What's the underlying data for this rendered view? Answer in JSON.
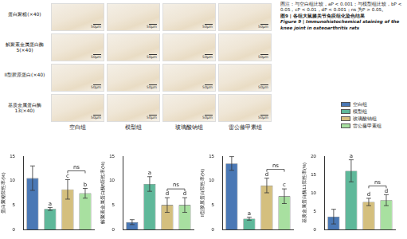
{
  "caption": {
    "note": "图注：与空白组比较，aP < 0.001；与模型组比较，bP < 0.05，cP < 0.01，dP < 0.001；ns 为P > 0.05。",
    "title_cn": "图9 | 各组大鼠膝关节免疫组化染色结果",
    "title_en": "Figure 9 | Immunohistochemical staining of the knee joint in osteoarthritis rats"
  },
  "image_grid": {
    "rows": [
      "蛋白聚糖(×40)",
      "解聚素金属蛋白酶5(×40)",
      "II型胶原蛋白(×40)",
      "基质金属蛋白酶13(×40)"
    ],
    "columns": [
      "空白组",
      "模型组",
      "玻璃酸钠组",
      "雷公藤甲素组"
    ],
    "scale_bar": "50μm"
  },
  "chart_data": [
    {
      "type": "bar",
      "y_label": "蛋白聚糖阳性率(%)",
      "categories": [
        "空白组",
        "模型组",
        "玻璃酸钠组",
        "雷公藤甲素组"
      ],
      "values": [
        10.5,
        4.2,
        8.2,
        7.4
      ],
      "errors": [
        2.5,
        0.3,
        2.0,
        1.0
      ],
      "annotations": [
        null,
        "a",
        "c",
        "b"
      ],
      "comparisons": [
        {
          "between": [
            "玻璃酸钠组",
            "雷公藤甲素组"
          ],
          "label": "ns"
        }
      ],
      "colors": [
        "#4a78b5",
        "#5fb89a",
        "#d4bf7e",
        "#a8e0a0"
      ],
      "ylim": [
        0,
        15
      ],
      "yticks": [
        0,
        5,
        10,
        15
      ],
      "grid": false,
      "tick_labels": "y"
    },
    {
      "type": "bar",
      "y_label": "解聚素金属蛋白酶5阳性率(%)",
      "categories": [
        "空白组",
        "模型组",
        "玻璃酸钠组",
        "雷公藤甲素组"
      ],
      "values": [
        1.5,
        9.3,
        5.0,
        5.0
      ],
      "errors": [
        0.5,
        1.5,
        1.5,
        1.5
      ],
      "annotations": [
        null,
        "a",
        "d",
        "d"
      ],
      "comparisons": [
        {
          "between": [
            "玻璃酸钠组",
            "雷公藤甲素组"
          ],
          "label": "ns"
        }
      ],
      "colors": [
        "#4a78b5",
        "#5fb89a",
        "#d4bf7e",
        "#a8e0a0"
      ],
      "ylim": [
        0,
        15
      ],
      "yticks": [
        0,
        5,
        10,
        15
      ],
      "grid": false,
      "tick_labels": "y"
    },
    {
      "type": "bar",
      "y_label": "II型胶原蛋白阳性率(%)",
      "categories": [
        "空白组",
        "模型组",
        "玻璃酸钠组",
        "雷公藤甲素组"
      ],
      "values": [
        13.5,
        2.2,
        9.0,
        6.8
      ],
      "errors": [
        1.4,
        0.3,
        1.5,
        1.5
      ],
      "annotations": [
        null,
        "a",
        "d",
        "c"
      ],
      "comparisons": [
        {
          "between": [
            "玻璃酸钠组",
            "雷公藤甲素组"
          ],
          "label": "ns"
        }
      ],
      "colors": [
        "#4a78b5",
        "#5fb89a",
        "#d4bf7e",
        "#a8e0a0"
      ],
      "ylim": [
        0,
        15
      ],
      "yticks": [
        0,
        5,
        10,
        15
      ],
      "grid": false,
      "tick_labels": "y"
    },
    {
      "type": "bar",
      "y_label": "基质金属蛋白酶13阳性率(%)",
      "categories": [
        "空白组",
        "模型组",
        "玻璃酸钠组",
        "雷公藤甲素组"
      ],
      "values": [
        3.5,
        16.0,
        7.5,
        8.0
      ],
      "errors": [
        2.0,
        3.0,
        1.0,
        1.5
      ],
      "annotations": [
        null,
        "a",
        "d",
        "d"
      ],
      "comparisons": [
        {
          "between": [
            "玻璃酸钠组",
            "雷公藤甲素组"
          ],
          "label": "ns"
        }
      ],
      "colors": [
        "#4a78b5",
        "#5fb89a",
        "#d4bf7e",
        "#a8e0a0"
      ],
      "ylim": [
        0,
        20
      ],
      "yticks": [
        0,
        5,
        10,
        15,
        20
      ],
      "grid": false,
      "tick_labels": "y"
    }
  ]
}
